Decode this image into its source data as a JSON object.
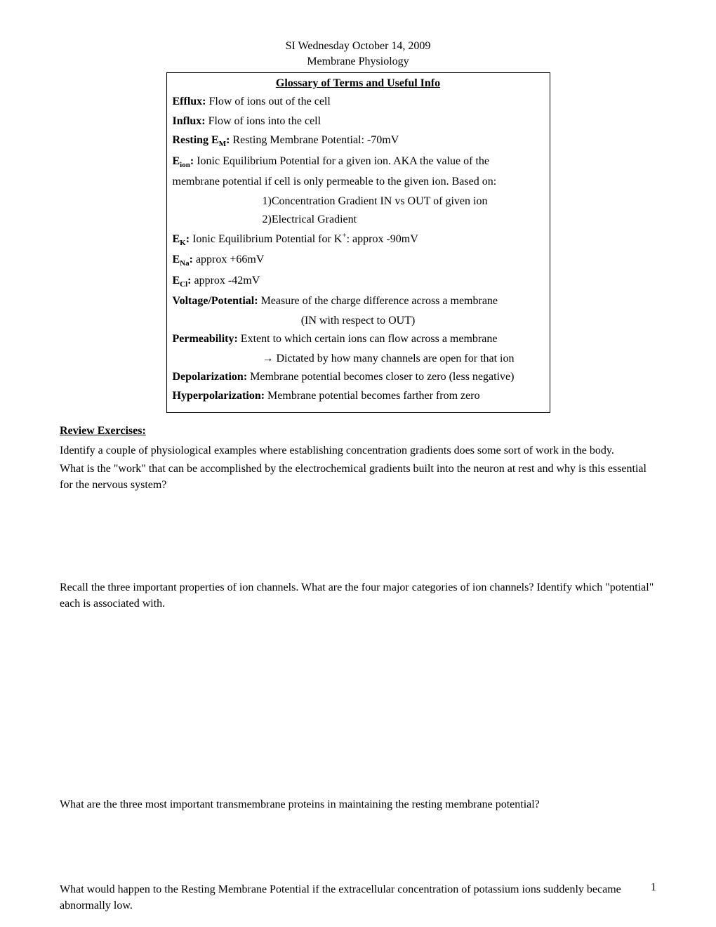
{
  "header": {
    "line1": "SI Wednesday October 14, 2009",
    "line2": "Membrane Physiology"
  },
  "glossary": {
    "title": "Glossary of Terms and Useful Info",
    "items": [
      {
        "term": "Efflux:",
        "def": " Flow of ions out of the cell"
      },
      {
        "term": "Influx:",
        "def": " Flow of ions into the cell"
      },
      {
        "term_html": "Resting E<sub>M</sub>:",
        "def": " Resting Membrane Potential: -70mV"
      },
      {
        "term_html": "E<sub>ion</sub>:",
        "def": " Ionic Equilibrium Potential for a given ion. AKA the value of the"
      },
      {
        "continuation": "membrane potential if cell is only permeable to the given ion.  Based on:"
      },
      {
        "sub": "1)Concentration Gradient IN vs OUT of given ion"
      },
      {
        "sub": "2)Electrical Gradient"
      },
      {
        "term_html": "E<sub>K</sub>:",
        "def_html": " Ionic Equilibrium Potential for K<sup>+</sup>: approx -90mV"
      },
      {
        "term_html": "E<sub>Na</sub>:",
        "def": " approx +66mV"
      },
      {
        "term_html": "E<sub>Cl</sub>:",
        "def": " approx -42mV"
      },
      {
        "term": "Voltage/Potential:",
        "def": " Measure of the charge difference across a membrane"
      },
      {
        "sub_center": "(IN with respect to OUT)"
      },
      {
        "term": "Permeability:",
        "def": " Extent to which certain ions can flow across a membrane"
      },
      {
        "sub_arrow": "→ Dictated by how many channels are open for that ion"
      },
      {
        "term": "Depolarization:",
        "def": " Membrane potential becomes closer to zero (less negative)"
      },
      {
        "term": "Hyperpolarization:",
        "def": " Membrane potential becomes farther from zero"
      }
    ]
  },
  "review": {
    "heading": "Review Exercises:",
    "q1a": "Identify a couple of physiological examples where establishing concentration gradients does some sort of work in the body.",
    "q1b": "What is the \"work\" that can be accomplished by the electrochemical gradients built into the neuron at rest and why is this essential for the nervous system?",
    "q2": "Recall the three important properties of ion channels. What are the four major categories of ion channels? Identify which \"potential\" each is associated with.",
    "q3": " What are the three most important transmembrane proteins in maintaining the resting membrane potential?",
    "q4": "What would happen to the Resting Membrane Potential if the extracellular concentration of potassium ions suddenly became abnormally low."
  },
  "page_number": "1"
}
